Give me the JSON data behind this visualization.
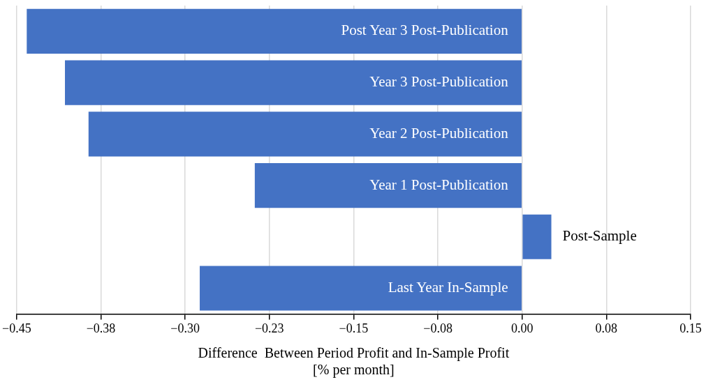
{
  "chart_data": {
    "type": "bar",
    "orientation": "horizontal",
    "categories": [
      "Post Year 3 Post-Publication",
      "Year 3 Post-Publication",
      "Year 2 Post-Publication",
      "Year 1 Post-Publication",
      "Post-Sample",
      "Last Year In-Sample"
    ],
    "values": [
      -0.441,
      -0.407,
      -0.386,
      -0.238,
      0.026,
      -0.287
    ],
    "color": "#4472c4",
    "xlim": [
      -0.45,
      0.15
    ],
    "xticks": [
      {
        "value": -0.45,
        "label": "−0.45"
      },
      {
        "value": -0.375,
        "label": "−0.38"
      },
      {
        "value": -0.3,
        "label": "−0.30"
      },
      {
        "value": -0.225,
        "label": "−0.23"
      },
      {
        "value": -0.15,
        "label": "−0.15"
      },
      {
        "value": -0.075,
        "label": "−0.08"
      },
      {
        "value": 0,
        "label": "0.00"
      },
      {
        "value": 0.075,
        "label": "0.08"
      },
      {
        "value": 0.15,
        "label": "0.15"
      }
    ],
    "xlabel": "Difference  Between Period Profit and In-Sample Profit\n[% per month]",
    "grid": "x",
    "tick_labels": "x",
    "legend": false
  }
}
